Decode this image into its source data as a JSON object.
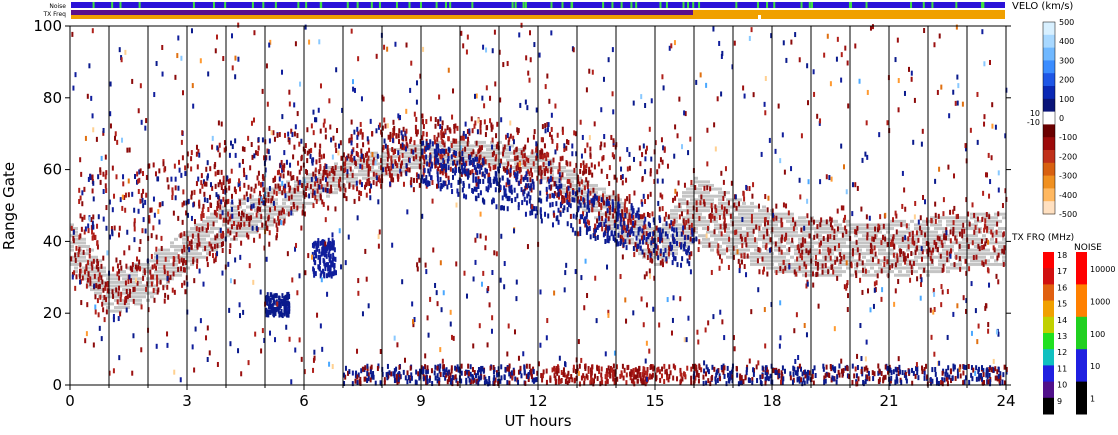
{
  "chart_data": {
    "type": "heatmap",
    "top_bars": {
      "noise_label": "Noise",
      "txfreq_label": "TX Freq"
    },
    "xlabel": "UT hours",
    "ylabel": "Range Gate",
    "xlim": [
      0,
      24
    ],
    "ylim": [
      0,
      100
    ],
    "x_ticks": [
      "0",
      "3",
      "6",
      "9",
      "12",
      "15",
      "18",
      "21",
      "24"
    ],
    "y_ticks": [
      "0",
      "20",
      "40",
      "60",
      "80",
      "100"
    ],
    "hour_lines": [
      1,
      2,
      3,
      4,
      5,
      6,
      7,
      8,
      9,
      10,
      11,
      12,
      13,
      14,
      15,
      16,
      17,
      18,
      19,
      20,
      21,
      22,
      23
    ],
    "velocity_colorbar": {
      "title": "VELO (km/s)",
      "ticks": [
        "500",
        "400",
        "300",
        "200",
        "100",
        "0",
        "-100",
        "-200",
        "-300",
        "-400",
        "-500"
      ],
      "extra_ticks": [
        "10",
        "-10"
      ]
    },
    "freq_colorbar": {
      "title": "TX FRQ (MHz)",
      "ticks": [
        "18",
        "17",
        "16",
        "15",
        "14",
        "13",
        "12",
        "11",
        "10",
        "9"
      ]
    },
    "noise_colorbar": {
      "title": "NOISE",
      "ticks": [
        "10000",
        "1000",
        "100",
        "10",
        "1"
      ]
    },
    "ground_scatter_band": [
      {
        "x": 0,
        "low": 33,
        "high": 45
      },
      {
        "x": 1,
        "low": 20,
        "high": 30
      },
      {
        "x": 2,
        "low": 24,
        "high": 35
      },
      {
        "x": 3,
        "low": 33,
        "high": 43
      },
      {
        "x": 4,
        "low": 40,
        "high": 50
      },
      {
        "x": 5,
        "low": 44,
        "high": 54
      },
      {
        "x": 6,
        "low": 50,
        "high": 58
      },
      {
        "x": 7,
        "low": 55,
        "high": 62
      },
      {
        "x": 8,
        "low": 58,
        "high": 65
      },
      {
        "x": 9,
        "low": 61,
        "high": 67
      },
      {
        "x": 10,
        "low": 62,
        "high": 68
      },
      {
        "x": 11,
        "low": 61,
        "high": 67
      },
      {
        "x": 12,
        "low": 58,
        "high": 64
      },
      {
        "x": 13,
        "low": 50,
        "high": 58
      },
      {
        "x": 14,
        "low": 42,
        "high": 52
      },
      {
        "x": 15,
        "low": 33,
        "high": 42
      },
      {
        "x": 16,
        "low": 40,
        "high": 58
      },
      {
        "x": 17,
        "low": 35,
        "high": 52
      },
      {
        "x": 18,
        "low": 32,
        "high": 48
      },
      {
        "x": 19,
        "low": 30,
        "high": 46
      },
      {
        "x": 20,
        "low": 30,
        "high": 45
      },
      {
        "x": 21,
        "low": 30,
        "high": 45
      },
      {
        "x": 22,
        "low": 31,
        "high": 46
      },
      {
        "x": 23,
        "low": 33,
        "high": 47
      },
      {
        "x": 24,
        "low": 34,
        "high": 48
      }
    ],
    "tx_freq_bar": [
      {
        "from": 0,
        "to": 16,
        "color": "#e09a00"
      },
      {
        "from": 16,
        "to": 24,
        "color": "#f0a000"
      }
    ],
    "tx_freq_bar_top": [
      {
        "from": 0,
        "to": 16,
        "color": "#5b0f8a"
      },
      {
        "from": 16,
        "to": 17.7,
        "color": "#f0a000"
      },
      {
        "from": 17.7,
        "to": 24,
        "color": "#f0a000"
      }
    ]
  }
}
